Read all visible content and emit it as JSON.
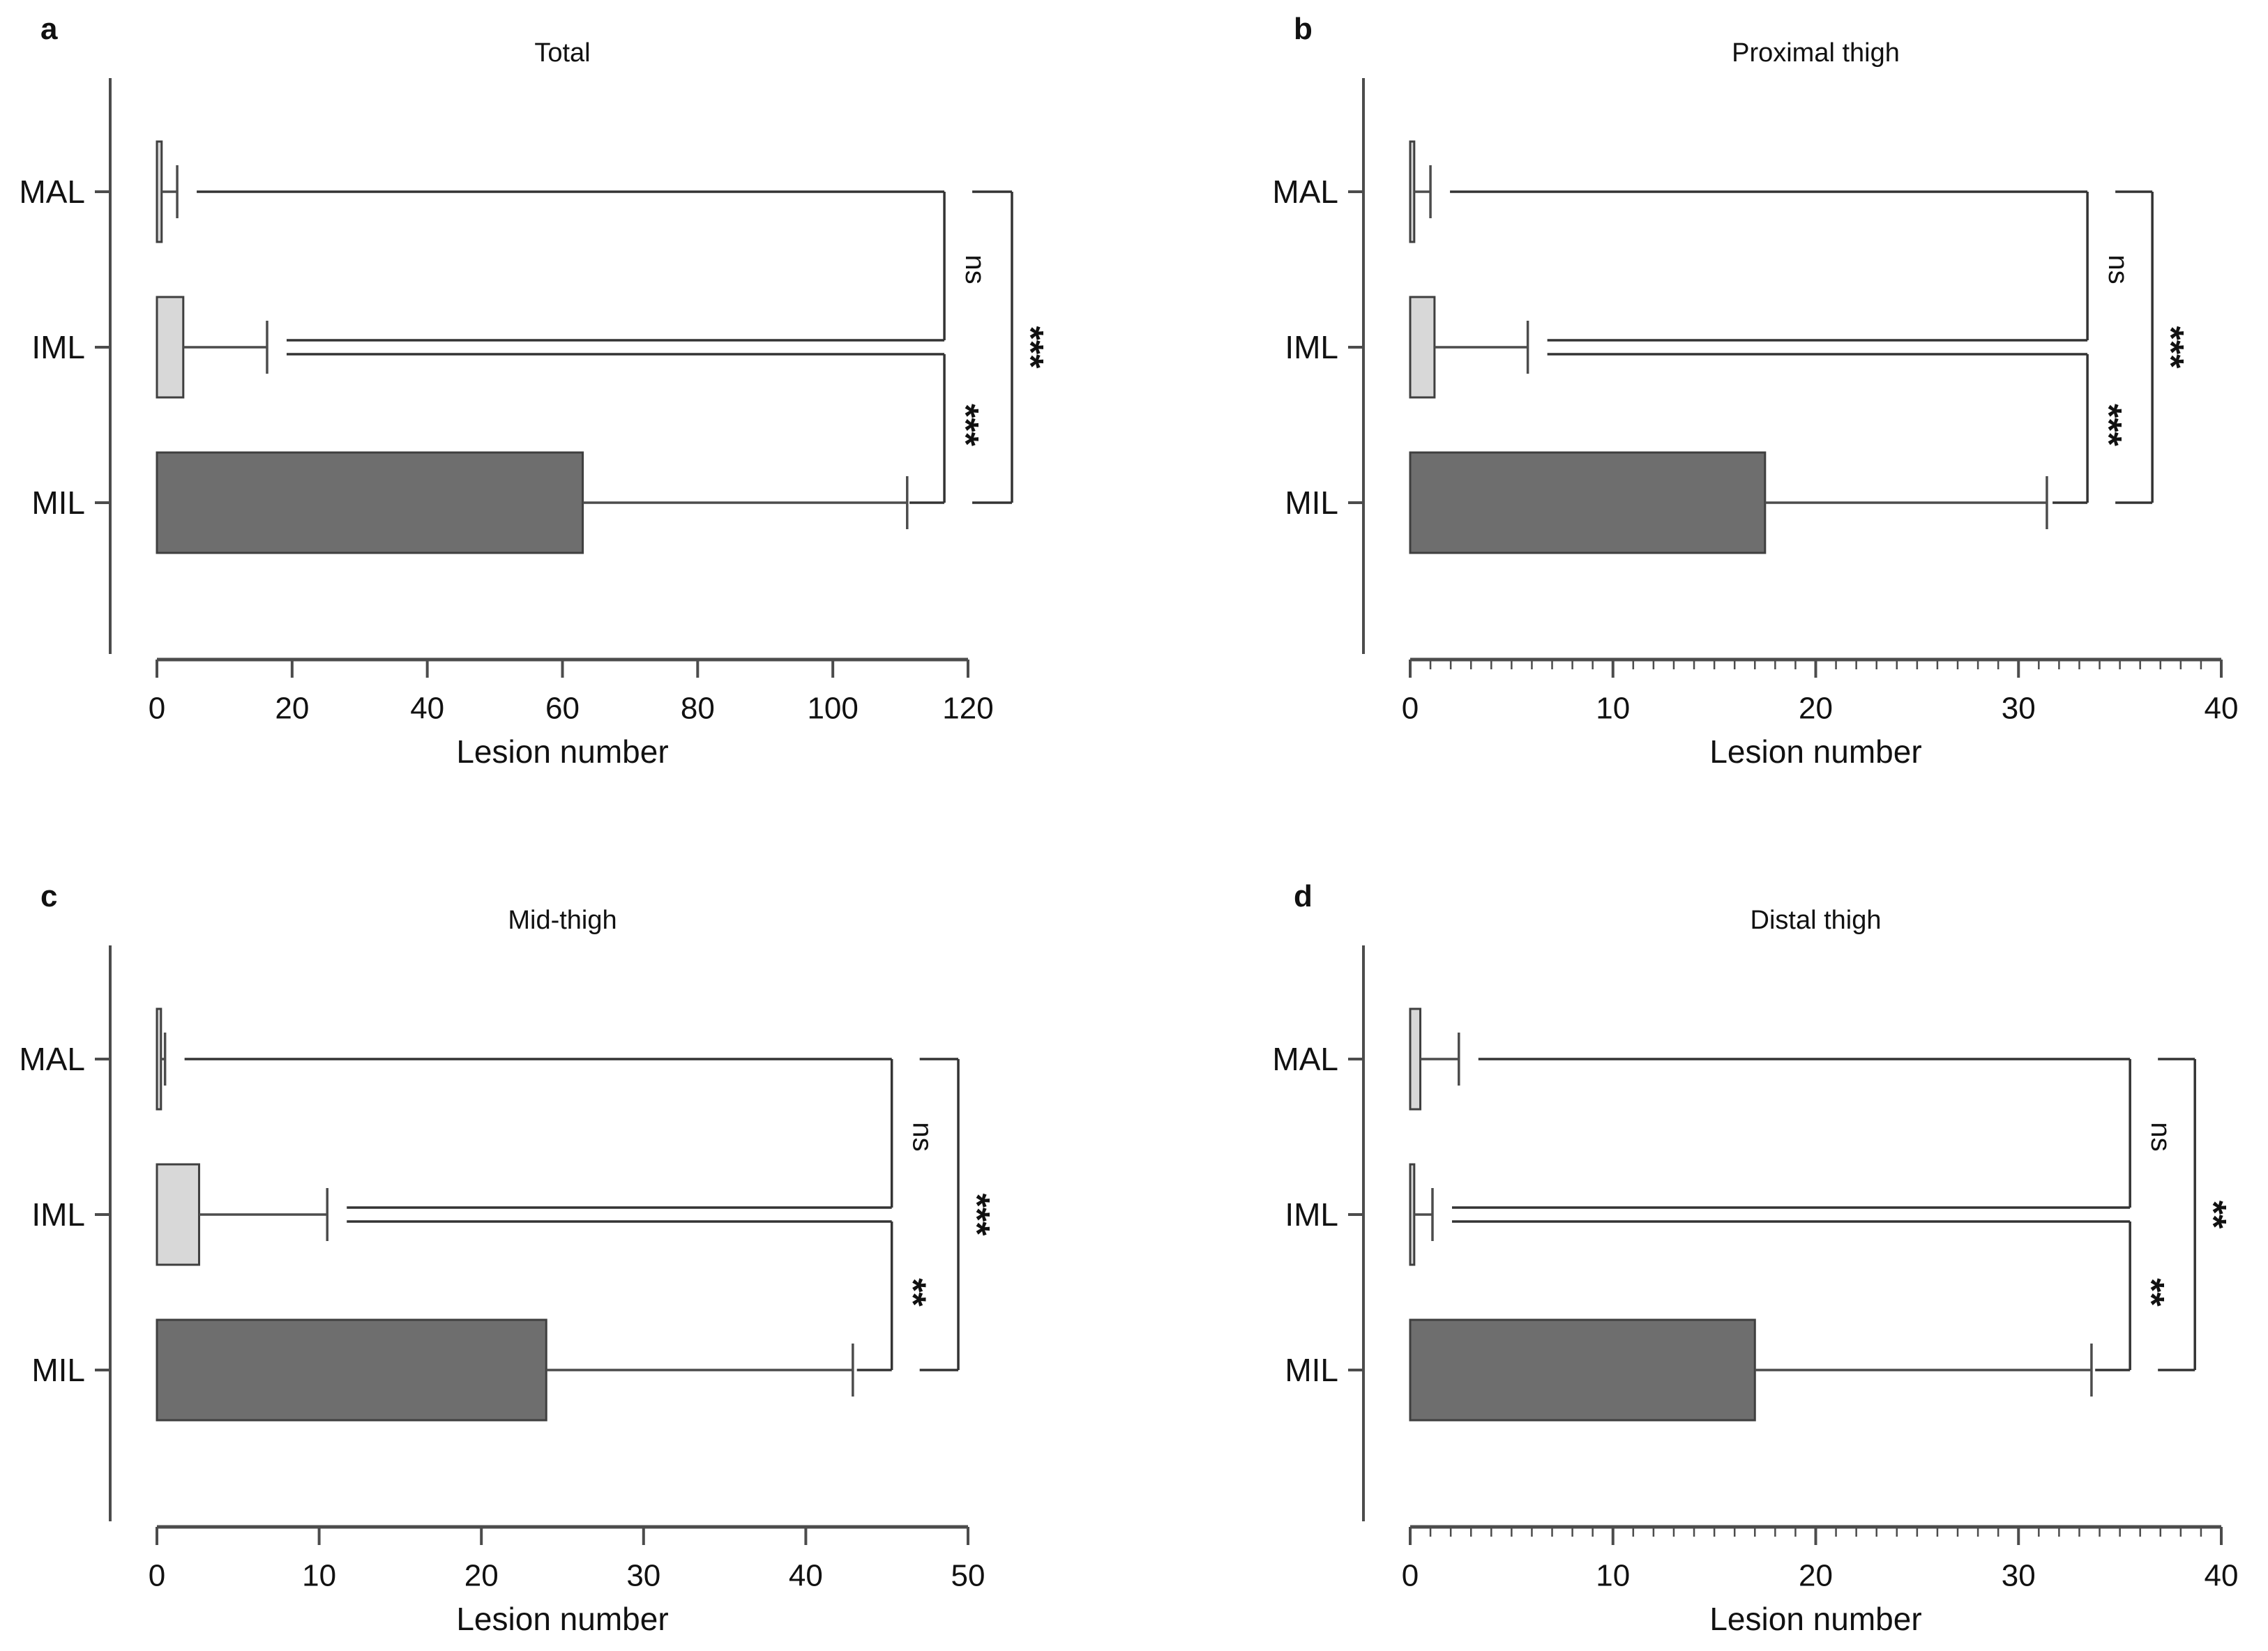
{
  "figure": {
    "background": "#ffffff",
    "panel_letters": [
      "a",
      "b",
      "c",
      "d"
    ]
  },
  "style": {
    "axis_color": "#4c4c4c",
    "line_color": "#4c4c4c",
    "bar_stroke": "#3f3f3f",
    "bracket_color": "#333333",
    "text_color": "#111111",
    "mal_fill": "#d8d8d8",
    "iml_fill": "#d8d8d8",
    "mil_fill": "#6e6e6e"
  },
  "chart_data": [
    {
      "type": "bar",
      "orientation": "horizontal",
      "panel_letter": "a",
      "title": "Total",
      "xlabel": "Lesion number",
      "categories": [
        "MAL",
        "IML",
        "MIL"
      ],
      "xlim": [
        0,
        120
      ],
      "xtick_step": 20,
      "minor_tick_step": null,
      "grid": false,
      "bars": [
        {
          "category": "MAL",
          "value": 0.7,
          "whisker": 3.0,
          "fill": "#d8d8d8"
        },
        {
          "category": "IML",
          "value": 3.9,
          "whisker": 16.3,
          "fill": "#d8d8d8"
        },
        {
          "category": "MIL",
          "value": 63.0,
          "whisker": 111.0,
          "fill": "#6e6e6e"
        }
      ],
      "comparisons": [
        {
          "between": [
            "MAL",
            "IML"
          ],
          "label": "ns",
          "x": 116.5,
          "position": "inner"
        },
        {
          "between": [
            "IML",
            "MIL"
          ],
          "label": "***",
          "x": 116.5,
          "position": "inner"
        },
        {
          "between": [
            "MAL",
            "MIL"
          ],
          "label": "***",
          "x": 126.5,
          "position": "outer"
        }
      ]
    },
    {
      "type": "bar",
      "orientation": "horizontal",
      "panel_letter": "b",
      "title": "Proximal thigh",
      "xlabel": "Lesion number",
      "categories": [
        "MAL",
        "IML",
        "MIL"
      ],
      "xlim": [
        0,
        40
      ],
      "xtick_step": 10,
      "minor_tick_step": 1,
      "grid": false,
      "bars": [
        {
          "category": "MAL",
          "value": 0.2,
          "whisker": 1.0,
          "fill": "#d8d8d8"
        },
        {
          "category": "IML",
          "value": 1.2,
          "whisker": 5.8,
          "fill": "#d8d8d8"
        },
        {
          "category": "MIL",
          "value": 17.5,
          "whisker": 31.4,
          "fill": "#6e6e6e"
        }
      ],
      "comparisons": [
        {
          "between": [
            "MAL",
            "IML"
          ],
          "label": "ns",
          "x": 33.4,
          "position": "inner"
        },
        {
          "between": [
            "IML",
            "MIL"
          ],
          "label": "***",
          "x": 33.4,
          "position": "inner"
        },
        {
          "between": [
            "MAL",
            "MIL"
          ],
          "label": "***",
          "x": 36.6,
          "position": "outer"
        }
      ]
    },
    {
      "type": "bar",
      "orientation": "horizontal",
      "panel_letter": "c",
      "title": "Mid-thigh",
      "xlabel": "Lesion number",
      "categories": [
        "MAL",
        "IML",
        "MIL"
      ],
      "xlim": [
        0,
        50
      ],
      "xtick_step": 10,
      "minor_tick_step": null,
      "grid": false,
      "bars": [
        {
          "category": "MAL",
          "value": 0.25,
          "whisker": 0.5,
          "fill": "#d8d8d8"
        },
        {
          "category": "IML",
          "value": 2.6,
          "whisker": 10.5,
          "fill": "#d8d8d8"
        },
        {
          "category": "MIL",
          "value": 24.0,
          "whisker": 42.9,
          "fill": "#6e6e6e"
        }
      ],
      "comparisons": [
        {
          "between": [
            "MAL",
            "IML"
          ],
          "label": "ns",
          "x": 45.3,
          "position": "inner"
        },
        {
          "between": [
            "IML",
            "MIL"
          ],
          "label": "**",
          "x": 45.3,
          "position": "inner"
        },
        {
          "between": [
            "MAL",
            "MIL"
          ],
          "label": "***",
          "x": 49.4,
          "position": "outer"
        }
      ]
    },
    {
      "type": "bar",
      "orientation": "horizontal",
      "panel_letter": "d",
      "title": "Distal thigh",
      "xlabel": "Lesion number",
      "categories": [
        "MAL",
        "IML",
        "MIL"
      ],
      "xlim": [
        0,
        40
      ],
      "xtick_step": 10,
      "minor_tick_step": 1,
      "grid": false,
      "bars": [
        {
          "category": "MAL",
          "value": 0.5,
          "whisker": 2.4,
          "fill": "#d8d8d8"
        },
        {
          "category": "IML",
          "value": 0.2,
          "whisker": 1.1,
          "fill": "#d8d8d8"
        },
        {
          "category": "MIL",
          "value": 17.0,
          "whisker": 33.6,
          "fill": "#6e6e6e"
        }
      ],
      "comparisons": [
        {
          "between": [
            "MAL",
            "IML"
          ],
          "label": "ns",
          "x": 35.5,
          "position": "inner"
        },
        {
          "between": [
            "IML",
            "MIL"
          ],
          "label": "**",
          "x": 35.5,
          "position": "inner"
        },
        {
          "between": [
            "MAL",
            "MIL"
          ],
          "label": "**",
          "x": 38.7,
          "position": "outer"
        }
      ]
    }
  ]
}
